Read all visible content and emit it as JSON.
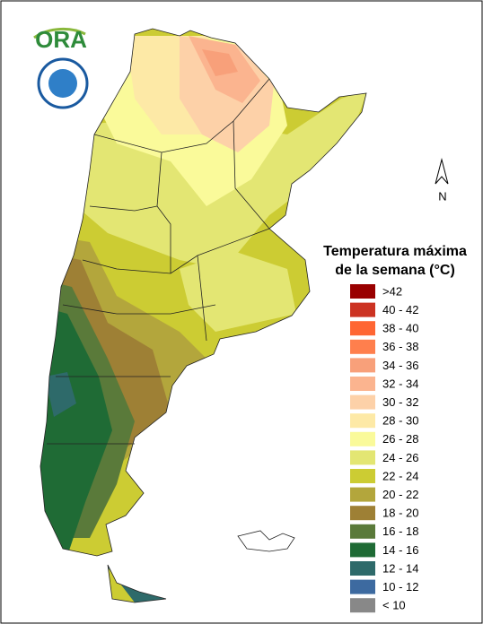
{
  "logo": {
    "text": "ORA"
  },
  "north_label": "N",
  "legend": {
    "title": [
      "Temperatura máxima",
      "de la semana (°C)"
    ],
    "items": [
      {
        "label": ">42",
        "color": "#990000"
      },
      {
        "label": "40 - 42",
        "color": "#cc3322"
      },
      {
        "label": "38 - 40",
        "color": "#ff6633"
      },
      {
        "label": "36 - 38",
        "color": "#ff7f4d"
      },
      {
        "label": "34 - 36",
        "color": "#f8a07a"
      },
      {
        "label": "32 - 34",
        "color": "#fbb48f"
      },
      {
        "label": "30 - 32",
        "color": "#fdd1a8"
      },
      {
        "label": "28 - 30",
        "color": "#fde9a6"
      },
      {
        "label": "26 - 28",
        "color": "#fafa9a"
      },
      {
        "label": "24 - 26",
        "color": "#e3e673"
      },
      {
        "label": "22 - 24",
        "color": "#cccc33"
      },
      {
        "label": "20 - 22",
        "color": "#b3a63c"
      },
      {
        "label": "18 - 20",
        "color": "#9e8035"
      },
      {
        "label": "16 - 18",
        "color": "#5a7a3a"
      },
      {
        "label": "14 - 16",
        "color": "#1f6b35"
      },
      {
        "label": "12 - 14",
        "color": "#2e6a6a"
      },
      {
        "label": "10 - 12",
        "color": "#3d6aa0"
      },
      {
        "label": "< 10",
        "color": "#888888"
      }
    ]
  }
}
